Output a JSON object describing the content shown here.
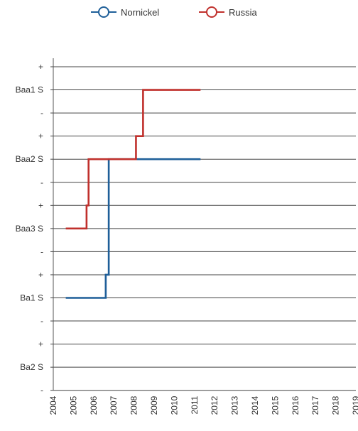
{
  "chart_data": {
    "type": "line",
    "title": "",
    "xlabel": "",
    "ylabel": "",
    "legend": {
      "position": "top-center"
    },
    "grid": {
      "horizontal": true,
      "vertical": false
    },
    "xlim": [
      2004,
      2019
    ],
    "x_ticks": [
      "2004",
      "2005",
      "2006",
      "2007",
      "2008",
      "2009",
      "2010",
      "2011",
      "2012",
      "2013",
      "2014",
      "2015",
      "2016",
      "2017",
      "2018",
      "2019"
    ],
    "y_ticks": [
      "-",
      "Ba2 S",
      "+",
      "-",
      "Ba1 S",
      "+",
      "-",
      "Baa3 S",
      "+",
      "-",
      "Baa2 S",
      "+",
      "-",
      "Baa1 S",
      "+"
    ],
    "series": [
      {
        "name": "Nornickel",
        "color": "#1f5f99",
        "step": "post",
        "points": [
          {
            "x": 2004.62,
            "y": "Ba1 S"
          },
          {
            "x": 2006.6,
            "y": "+"
          },
          {
            "x": 2006.75,
            "y": "Baa2 S"
          },
          {
            "x": 2011.3,
            "y": "Baa2 S"
          }
        ]
      },
      {
        "name": "Russia",
        "color": "#c0302c",
        "step": "post",
        "points": [
          {
            "x": 2004.62,
            "y": "Baa3 S"
          },
          {
            "x": 2005.65,
            "y": "+"
          },
          {
            "x": 2005.75,
            "y": "Baa2 S"
          },
          {
            "x": 2008.1,
            "y": "+"
          },
          {
            "x": 2008.45,
            "y": "Baa1 S"
          },
          {
            "x": 2011.3,
            "y": "Baa1 S"
          }
        ]
      }
    ]
  }
}
